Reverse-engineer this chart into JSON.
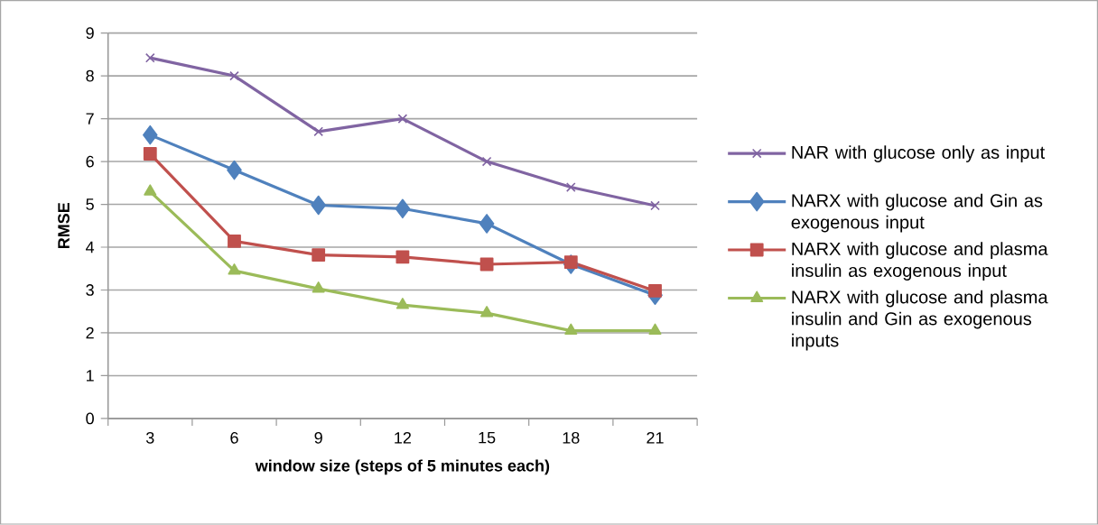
{
  "chart_data": {
    "type": "line",
    "xlabel": "window size (steps of 5 minutes each)",
    "ylabel": "RMSE",
    "categories": [
      "3",
      "6",
      "9",
      "12",
      "15",
      "18",
      "21"
    ],
    "ylim": [
      0,
      9
    ],
    "yticks": [
      0,
      1,
      2,
      3,
      4,
      5,
      6,
      7,
      8,
      9
    ],
    "grid": "y",
    "legend": "right",
    "series": [
      {
        "name": "NAR with glucose only as input",
        "color": "#8064a2",
        "marker": "cross",
        "values": [
          8.42,
          8.0,
          6.7,
          7.0,
          6.0,
          5.4,
          4.97
        ]
      },
      {
        "name": "NARX with glucose and Gin as exogenous input",
        "color": "#4f81bd",
        "marker": "diamond",
        "values": [
          6.62,
          5.8,
          4.98,
          4.9,
          4.55,
          3.6,
          2.88
        ]
      },
      {
        "name": "NARX with glucose and plasma insulin as exogenous input",
        "color": "#c0504d",
        "marker": "square",
        "values": [
          6.18,
          4.14,
          3.82,
          3.77,
          3.6,
          3.65,
          2.98
        ]
      },
      {
        "name": "NARX with glucose and plasma insulin and Gin as exogenous inputs",
        "color": "#9bbb59",
        "marker": "triangle",
        "values": [
          5.3,
          3.45,
          3.03,
          2.65,
          2.46,
          2.05,
          2.05
        ]
      }
    ]
  }
}
